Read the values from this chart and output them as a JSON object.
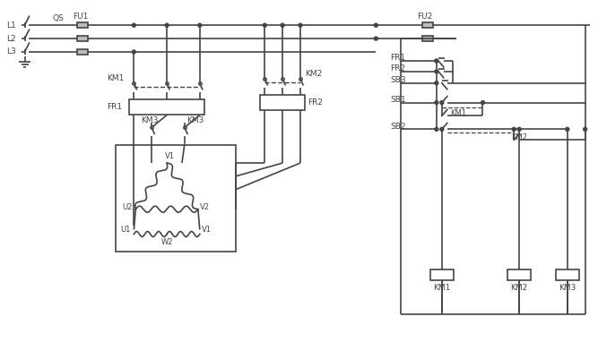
{
  "bg_color": "#ffffff",
  "line_color": "#444444",
  "line_width": 1.2,
  "fig_width": 6.67,
  "fig_height": 3.82,
  "dpi": 100,
  "labels": {
    "L1": "L1",
    "L2": "L2",
    "L3": "L3",
    "QS": "QS",
    "FU1": "FU1",
    "FU2": "FU2",
    "KM1": "KM1",
    "KM2": "KM2",
    "KM3": "KM3",
    "FR1": "FR1",
    "FR2": "FR2",
    "SB1": "SB1",
    "SB2": "SB2",
    "SB3": "SB3",
    "U1": "U1",
    "U2": "U2",
    "V1": "V1",
    "V2": "V2",
    "W2": "W2"
  }
}
